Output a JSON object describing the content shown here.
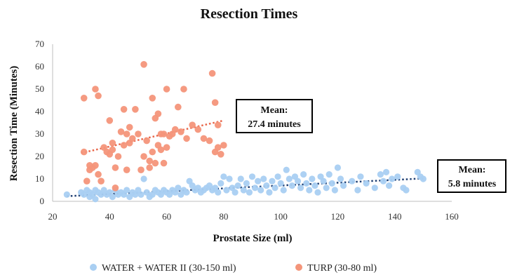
{
  "chart_data": {
    "type": "scatter",
    "title": "Resection Times",
    "xlabel": "Prostate Size (ml)",
    "ylabel": "Resection Time (Minutes)",
    "xlim": [
      20,
      160
    ],
    "ylim": [
      0,
      70
    ],
    "x_ticks": [
      20,
      40,
      60,
      80,
      100,
      120,
      140,
      160
    ],
    "y_ticks": [
      0,
      10,
      20,
      30,
      40,
      50,
      60,
      70
    ],
    "grid": "none",
    "legend_position": "bottom",
    "series": [
      {
        "name": "WATER + WATER II (30-150 ml)",
        "color": "#a9cff2",
        "marker": "circle",
        "trendline": {
          "x": [
            25,
            150
          ],
          "y": [
            2.3,
            10.2
          ],
          "color": "#1f3f73",
          "style": "dotted"
        },
        "points": [
          [
            25,
            3
          ],
          [
            30,
            4
          ],
          [
            31,
            3
          ],
          [
            32,
            5
          ],
          [
            33,
            2
          ],
          [
            33,
            4
          ],
          [
            34,
            3
          ],
          [
            35,
            1
          ],
          [
            35,
            5
          ],
          [
            36,
            4
          ],
          [
            37,
            3
          ],
          [
            38,
            5
          ],
          [
            39,
            3
          ],
          [
            40,
            4
          ],
          [
            41,
            2
          ],
          [
            42,
            5
          ],
          [
            43,
            3
          ],
          [
            44,
            4
          ],
          [
            45,
            3
          ],
          [
            46,
            5
          ],
          [
            47,
            2
          ],
          [
            48,
            4
          ],
          [
            49,
            3
          ],
          [
            50,
            5
          ],
          [
            51,
            3
          ],
          [
            52,
            10
          ],
          [
            53,
            4
          ],
          [
            54,
            2
          ],
          [
            55,
            3
          ],
          [
            56,
            5
          ],
          [
            57,
            4
          ],
          [
            58,
            3
          ],
          [
            59,
            5
          ],
          [
            60,
            4
          ],
          [
            61,
            3
          ],
          [
            62,
            5
          ],
          [
            63,
            4
          ],
          [
            64,
            6
          ],
          [
            65,
            3
          ],
          [
            66,
            5
          ],
          [
            67,
            4
          ],
          [
            68,
            9
          ],
          [
            69,
            7
          ],
          [
            70,
            5
          ],
          [
            71,
            6
          ],
          [
            72,
            4
          ],
          [
            73,
            5
          ],
          [
            74,
            6
          ],
          [
            75,
            7
          ],
          [
            76,
            5
          ],
          [
            77,
            6
          ],
          [
            78,
            4
          ],
          [
            79,
            8
          ],
          [
            80,
            11
          ],
          [
            81,
            5
          ],
          [
            82,
            10
          ],
          [
            83,
            6
          ],
          [
            84,
            4
          ],
          [
            85,
            7
          ],
          [
            86,
            10
          ],
          [
            87,
            5
          ],
          [
            88,
            8
          ],
          [
            89,
            4
          ],
          [
            90,
            11
          ],
          [
            91,
            6
          ],
          [
            92,
            9
          ],
          [
            93,
            5
          ],
          [
            94,
            10
          ],
          [
            95,
            7
          ],
          [
            96,
            4
          ],
          [
            97,
            9
          ],
          [
            98,
            6
          ],
          [
            99,
            11
          ],
          [
            100,
            8
          ],
          [
            101,
            5
          ],
          [
            102,
            14
          ],
          [
            103,
            10
          ],
          [
            104,
            7
          ],
          [
            105,
            11
          ],
          [
            106,
            9
          ],
          [
            107,
            6
          ],
          [
            108,
            12
          ],
          [
            109,
            8
          ],
          [
            110,
            5
          ],
          [
            111,
            10
          ],
          [
            112,
            7
          ],
          [
            113,
            4
          ],
          [
            114,
            11
          ],
          [
            115,
            9
          ],
          [
            116,
            6
          ],
          [
            117,
            12
          ],
          [
            118,
            8
          ],
          [
            119,
            5
          ],
          [
            120,
            15
          ],
          [
            121,
            10
          ],
          [
            122,
            7
          ],
          [
            125,
            9
          ],
          [
            127,
            5
          ],
          [
            128,
            11
          ],
          [
            130,
            8
          ],
          [
            133,
            6
          ],
          [
            135,
            12
          ],
          [
            136,
            9
          ],
          [
            137,
            13
          ],
          [
            138,
            7
          ],
          [
            139,
            10
          ],
          [
            141,
            11
          ],
          [
            143,
            6
          ],
          [
            144,
            5
          ],
          [
            148,
            13
          ],
          [
            149,
            11
          ],
          [
            150,
            10
          ]
        ]
      },
      {
        "name": "TURP (30-80 ml)",
        "color": "#f4957a",
        "marker": "circle",
        "trendline": {
          "x": [
            30,
            80
          ],
          "y": [
            21.5,
            36
          ],
          "color": "#e8664a",
          "style": "dotted"
        },
        "points": [
          [
            31,
            46
          ],
          [
            31,
            22
          ],
          [
            32,
            9
          ],
          [
            33,
            14
          ],
          [
            33,
            16
          ],
          [
            34,
            15
          ],
          [
            35,
            50
          ],
          [
            35,
            16
          ],
          [
            36,
            47
          ],
          [
            36,
            12
          ],
          [
            37,
            9
          ],
          [
            38,
            24
          ],
          [
            39,
            22
          ],
          [
            40,
            36
          ],
          [
            40,
            21
          ],
          [
            41,
            26
          ],
          [
            41,
            23
          ],
          [
            42,
            15
          ],
          [
            42,
            6
          ],
          [
            43,
            20
          ],
          [
            44,
            31
          ],
          [
            45,
            41
          ],
          [
            45,
            25
          ],
          [
            46,
            30
          ],
          [
            46,
            14
          ],
          [
            47,
            33
          ],
          [
            47,
            26
          ],
          [
            48,
            28
          ],
          [
            49,
            41
          ],
          [
            50,
            30
          ],
          [
            51,
            14
          ],
          [
            52,
            61
          ],
          [
            52,
            20
          ],
          [
            53,
            27
          ],
          [
            54,
            18
          ],
          [
            54,
            15
          ],
          [
            55,
            46
          ],
          [
            55,
            22
          ],
          [
            56,
            37
          ],
          [
            56,
            17
          ],
          [
            57,
            39
          ],
          [
            57,
            25
          ],
          [
            58,
            30
          ],
          [
            58,
            23
          ],
          [
            59,
            17
          ],
          [
            59,
            30
          ],
          [
            60,
            50
          ],
          [
            60,
            24
          ],
          [
            61,
            29
          ],
          [
            62,
            30
          ],
          [
            63,
            32
          ],
          [
            64,
            42
          ],
          [
            65,
            31
          ],
          [
            66,
            50
          ],
          [
            67,
            28
          ],
          [
            69,
            34
          ],
          [
            71,
            32
          ],
          [
            73,
            28
          ],
          [
            75,
            27
          ],
          [
            76,
            57
          ],
          [
            77,
            44
          ],
          [
            77,
            22
          ],
          [
            78,
            34
          ],
          [
            78,
            24
          ],
          [
            79,
            21
          ],
          [
            80,
            25
          ]
        ]
      }
    ],
    "annotations": [
      {
        "lines": [
          "Mean:",
          "27.4 minutes"
        ]
      },
      {
        "lines": [
          "Mean:",
          "5.8 minutes"
        ]
      }
    ]
  }
}
